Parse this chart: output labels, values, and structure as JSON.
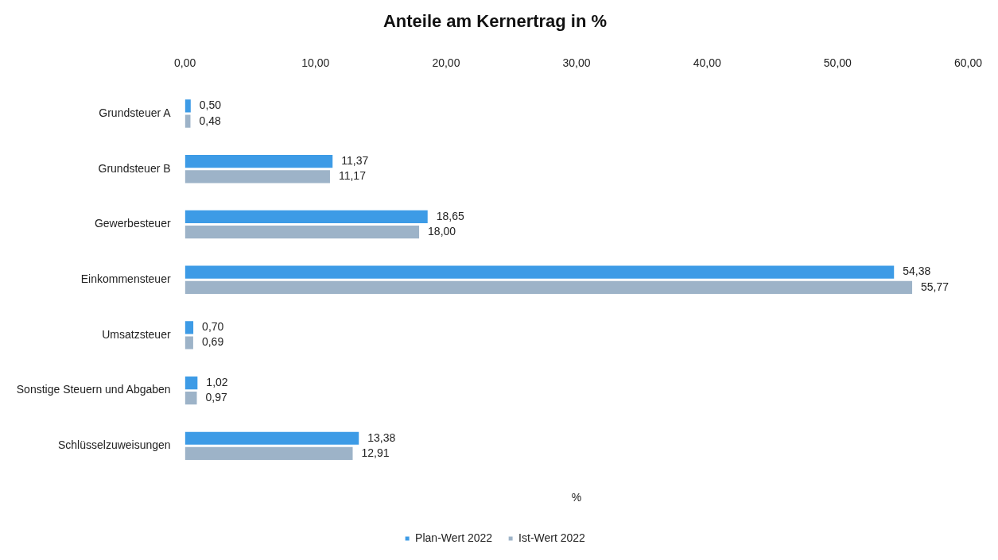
{
  "chart_data": {
    "type": "bar",
    "orientation": "horizontal",
    "title": "Anteile am Kernertrag in %",
    "xlabel": "%",
    "categories": [
      "Grundsteuer A",
      "Grundsteuer B",
      "Gewerbesteuer",
      "Einkommensteuer",
      "Umsatzsteuer",
      "Sonstige Steuern und Abgaben",
      "Schlüsselzuweisungen"
    ],
    "series": [
      {
        "name": "Plan-Wert 2022",
        "color": "#3d9be6",
        "values": [
          0.5,
          11.37,
          18.65,
          54.38,
          0.7,
          1.02,
          13.38
        ],
        "value_labels": [
          "0,50",
          "11,37",
          "18,65",
          "54,38",
          "0,70",
          "1,02",
          "13,38"
        ]
      },
      {
        "name": "Ist-Wert 2022",
        "color": "#9db3c8",
        "values": [
          0.48,
          11.17,
          18.0,
          55.77,
          0.69,
          0.97,
          12.91
        ],
        "value_labels": [
          "0,48",
          "11,17",
          "18,00",
          "55,77",
          "0,69",
          "0,97",
          "12,91"
        ]
      }
    ],
    "xlim": [
      0,
      60
    ],
    "xticks": [
      {
        "value": 0,
        "label": "0,00"
      },
      {
        "value": 10,
        "label": "10,00"
      },
      {
        "value": 20,
        "label": "20,00"
      },
      {
        "value": 30,
        "label": "30,00"
      },
      {
        "value": 40,
        "label": "40,00"
      },
      {
        "value": 50,
        "label": "50,00"
      },
      {
        "value": 60,
        "label": "60,00"
      }
    ],
    "grid": false,
    "legend": "bottom"
  }
}
